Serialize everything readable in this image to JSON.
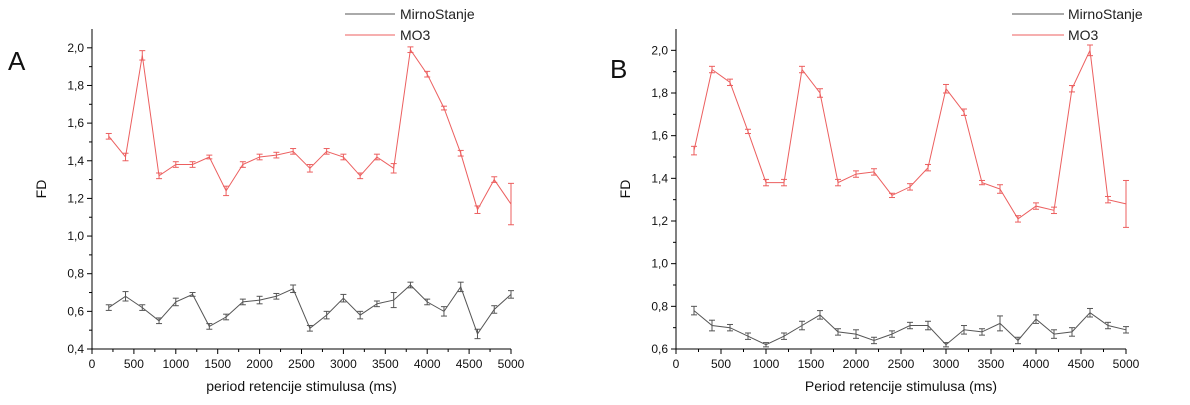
{
  "chart_data": [
    {
      "type": "line",
      "panel_label": "A",
      "xlabel": "period retencije stimulusa (ms)",
      "ylabel": "FD",
      "xlim": [
        0,
        5000
      ],
      "ylim": [
        0.4,
        2.1
      ],
      "x_ticks": [
        0,
        500,
        1000,
        1500,
        2000,
        2500,
        3000,
        3500,
        4000,
        4500,
        5000
      ],
      "x_tick_labels": [
        "0",
        "500",
        "1000",
        "1500",
        "2000",
        "2500",
        "3000",
        "3500",
        "4000",
        "4500",
        "5000"
      ],
      "y_ticks": [
        0.4,
        0.6,
        0.8,
        1.0,
        1.2,
        1.4,
        1.6,
        1.8,
        2.0
      ],
      "y_tick_labels": [
        "0,4",
        "0,6",
        "0,8",
        "1,0",
        "1,2",
        "1,4",
        "1,6",
        "1,8",
        "2,0"
      ],
      "legend": {
        "position": "top-right"
      },
      "series": [
        {
          "name": "MirnoStanje",
          "color": "#555555",
          "x": [
            200,
            400,
            600,
            800,
            1000,
            1200,
            1400,
            1600,
            1800,
            2000,
            2200,
            2400,
            2600,
            2800,
            3000,
            3200,
            3400,
            3600,
            3800,
            4000,
            4200,
            4400,
            4600,
            4800,
            5000
          ],
          "y": [
            0.62,
            0.68,
            0.62,
            0.55,
            0.65,
            0.69,
            0.52,
            0.57,
            0.65,
            0.66,
            0.68,
            0.72,
            0.51,
            0.58,
            0.67,
            0.58,
            0.64,
            0.66,
            0.74,
            0.65,
            0.6,
            0.73,
            0.48,
            0.61,
            0.69
          ],
          "err": [
            0.015,
            0.025,
            0.015,
            0.015,
            0.02,
            0.01,
            0.015,
            0.015,
            0.015,
            0.02,
            0.015,
            0.02,
            0.015,
            0.02,
            0.02,
            0.02,
            0.015,
            0.04,
            0.015,
            0.015,
            0.025,
            0.025,
            0.025,
            0.02,
            0.02
          ]
        },
        {
          "name": "MO3",
          "color": "#ec5f5f",
          "x": [
            200,
            400,
            600,
            800,
            1000,
            1200,
            1400,
            1600,
            1800,
            2000,
            2200,
            2400,
            2600,
            2800,
            3000,
            3200,
            3400,
            3600,
            3800,
            4000,
            4200,
            4400,
            4600,
            4800,
            5000
          ],
          "y": [
            1.53,
            1.42,
            1.96,
            1.32,
            1.38,
            1.38,
            1.42,
            1.24,
            1.38,
            1.42,
            1.43,
            1.45,
            1.36,
            1.45,
            1.42,
            1.32,
            1.42,
            1.36,
            1.99,
            1.86,
            1.68,
            1.44,
            1.14,
            1.3,
            1.17
          ],
          "err": [
            0.015,
            0.02,
            0.025,
            0.015,
            0.015,
            0.015,
            0.01,
            0.025,
            0.015,
            0.015,
            0.015,
            0.015,
            0.02,
            0.015,
            0.015,
            0.015,
            0.015,
            0.025,
            0.015,
            0.015,
            0.01,
            0.015,
            0.02,
            0.015,
            0.11
          ]
        }
      ]
    },
    {
      "type": "line",
      "panel_label": "B",
      "xlabel": "Period retencije stimulusa (ms)",
      "ylabel": "FD",
      "xlim": [
        0,
        5000
      ],
      "ylim": [
        0.6,
        2.1
      ],
      "x_ticks": [
        0,
        500,
        1000,
        1500,
        2000,
        2500,
        3000,
        3500,
        4000,
        4500,
        5000
      ],
      "x_tick_labels": [
        "0",
        "500",
        "1000",
        "1500",
        "2000",
        "2500",
        "3000",
        "3500",
        "4000",
        "4500",
        "5000"
      ],
      "y_ticks": [
        0.6,
        0.8,
        1.0,
        1.2,
        1.4,
        1.6,
        1.8,
        2.0
      ],
      "y_tick_labels": [
        "0,6",
        "0,8",
        "1,0",
        "1,2",
        "1,4",
        "1,6",
        "1,8",
        "2,0"
      ],
      "legend": {
        "position": "top-right"
      },
      "series": [
        {
          "name": "MirnoStanje",
          "color": "#555555",
          "x": [
            200,
            400,
            600,
            800,
            1000,
            1200,
            1400,
            1600,
            1800,
            2000,
            2200,
            2400,
            2600,
            2800,
            3000,
            3200,
            3400,
            3600,
            3800,
            4000,
            4200,
            4400,
            4600,
            4800,
            5000
          ],
          "y": [
            0.78,
            0.71,
            0.7,
            0.66,
            0.62,
            0.66,
            0.71,
            0.76,
            0.68,
            0.67,
            0.64,
            0.67,
            0.71,
            0.71,
            0.62,
            0.69,
            0.68,
            0.72,
            0.64,
            0.74,
            0.67,
            0.68,
            0.77,
            0.71,
            0.69
          ],
          "err": [
            0.02,
            0.025,
            0.015,
            0.015,
            0.01,
            0.015,
            0.02,
            0.02,
            0.015,
            0.02,
            0.015,
            0.015,
            0.015,
            0.02,
            0.01,
            0.02,
            0.015,
            0.035,
            0.015,
            0.02,
            0.02,
            0.02,
            0.02,
            0.015,
            0.015
          ]
        },
        {
          "name": "MO3",
          "color": "#ec5f5f",
          "x": [
            200,
            400,
            600,
            800,
            1000,
            1200,
            1400,
            1600,
            1800,
            2000,
            2200,
            2400,
            2600,
            2800,
            3000,
            3200,
            3400,
            3600,
            3800,
            4000,
            4200,
            4400,
            4600,
            4800,
            5000
          ],
          "y": [
            1.53,
            1.91,
            1.85,
            1.62,
            1.38,
            1.38,
            1.91,
            1.8,
            1.38,
            1.42,
            1.43,
            1.32,
            1.36,
            1.45,
            1.82,
            1.71,
            1.38,
            1.35,
            1.21,
            1.27,
            1.25,
            1.82,
            2.0,
            1.3,
            1.28
          ],
          "err": [
            0.02,
            0.015,
            0.015,
            0.01,
            0.015,
            0.015,
            0.015,
            0.02,
            0.015,
            0.015,
            0.015,
            0.01,
            0.015,
            0.015,
            0.02,
            0.015,
            0.01,
            0.02,
            0.015,
            0.015,
            0.015,
            0.015,
            0.025,
            0.015,
            0.11
          ]
        }
      ]
    }
  ]
}
